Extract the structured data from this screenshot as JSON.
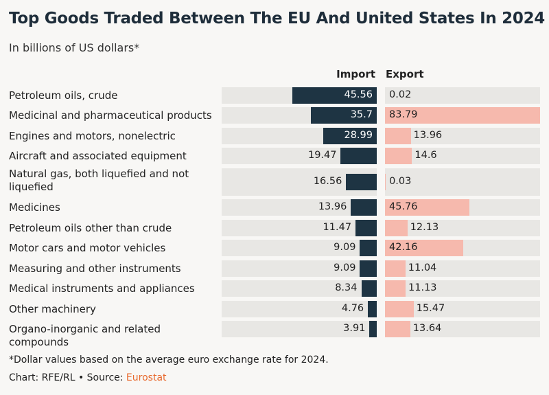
{
  "title": "Top Goods Traded Between The EU And United States In 2024",
  "subtitle": "In billions of US dollars*",
  "footnote": "*Dollar values based on the average euro exchange rate for 2024.",
  "credit_prefix": "Chart: RFE/RL • Source: ",
  "source": "Eurostat",
  "colors": {
    "import": "#1e3443",
    "export": "#f6b9ad",
    "track": "#e8e7e4",
    "source": "#e8692d"
  },
  "chart_data": {
    "type": "bar",
    "orientation": "horizontal-diverging",
    "series": [
      {
        "name": "Import",
        "values": [
          45.56,
          35.7,
          28.99,
          19.47,
          16.56,
          13.96,
          11.47,
          9.09,
          9.09,
          8.34,
          4.76,
          3.91
        ]
      },
      {
        "name": "Export",
        "values": [
          0.02,
          83.79,
          13.96,
          14.6,
          0.03,
          45.76,
          12.13,
          42.16,
          11.04,
          11.13,
          15.47,
          13.64
        ]
      }
    ],
    "categories": [
      "Petroleum oils, crude",
      "Medicinal and pharmaceutical products",
      "Engines and motors, nonelectric",
      "Aircraft and associated equipment",
      "Natural gas, both liquefied and not liquefied",
      "Medicines",
      "Petroleum oils other than crude",
      "Motor cars and motor vehicles",
      "Measuring and other instruments",
      "Medical instruments and appliances",
      "Other machinery",
      "Organo-inorganic and related compounds"
    ],
    "value_labels": {
      "import": [
        "45.56",
        "35.7",
        "28.99",
        "19.47",
        "16.56",
        "13.96",
        "11.47",
        "9.09",
        "9.09",
        "8.34",
        "4.76",
        "3.91"
      ],
      "export": [
        "0.02",
        "83.79",
        "13.96",
        "14.6",
        "0.03",
        "45.76",
        "12.13",
        "42.16",
        "11.04",
        "11.13",
        "15.47",
        "13.64"
      ]
    },
    "xlim": [
      0,
      83.79
    ],
    "grid": false,
    "legend": "column headers above bars"
  }
}
